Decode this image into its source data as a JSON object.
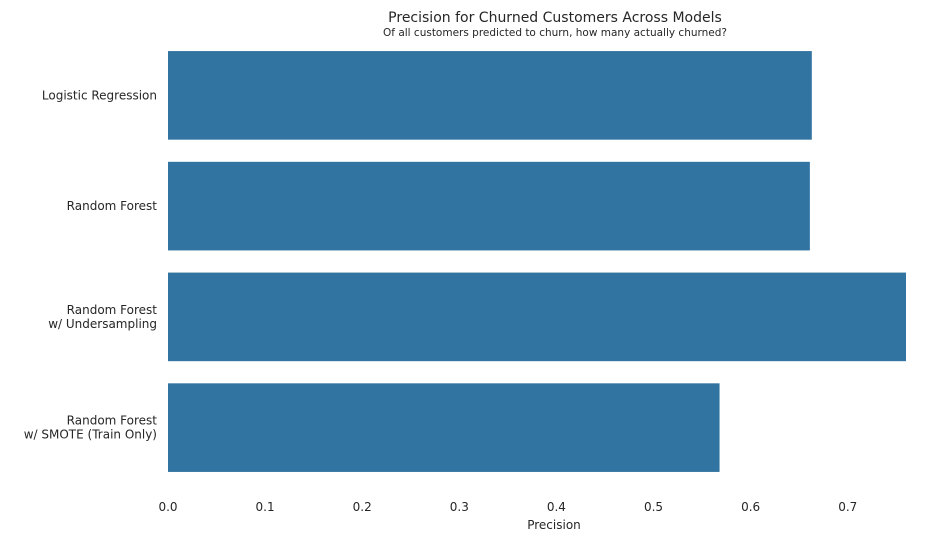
{
  "chart_data": {
    "type": "bar",
    "orientation": "horizontal",
    "title": "Precision for Churned Customers Across Models",
    "subtitle": "Of all customers predicted to churn, how many actually churned?",
    "xlabel": "Precision",
    "ylabel": "",
    "categories": [
      [
        "Logistic Regression"
      ],
      [
        "Random Forest"
      ],
      [
        "Random Forest",
        "w/ Undersampling"
      ],
      [
        "Random Forest",
        "w/ SMOTE (Train Only)"
      ]
    ],
    "values": [
      0.663,
      0.661,
      0.76,
      0.568
    ],
    "xlim": [
      0,
      0.76
    ],
    "xticks": [
      0.0,
      0.1,
      0.2,
      0.3,
      0.4,
      0.5,
      0.6,
      0.7
    ],
    "xtick_labels": [
      "0.0",
      "0.1",
      "0.2",
      "0.3",
      "0.4",
      "0.5",
      "0.6",
      "0.7"
    ],
    "grid": false,
    "bar_color": "#3274a1"
  }
}
